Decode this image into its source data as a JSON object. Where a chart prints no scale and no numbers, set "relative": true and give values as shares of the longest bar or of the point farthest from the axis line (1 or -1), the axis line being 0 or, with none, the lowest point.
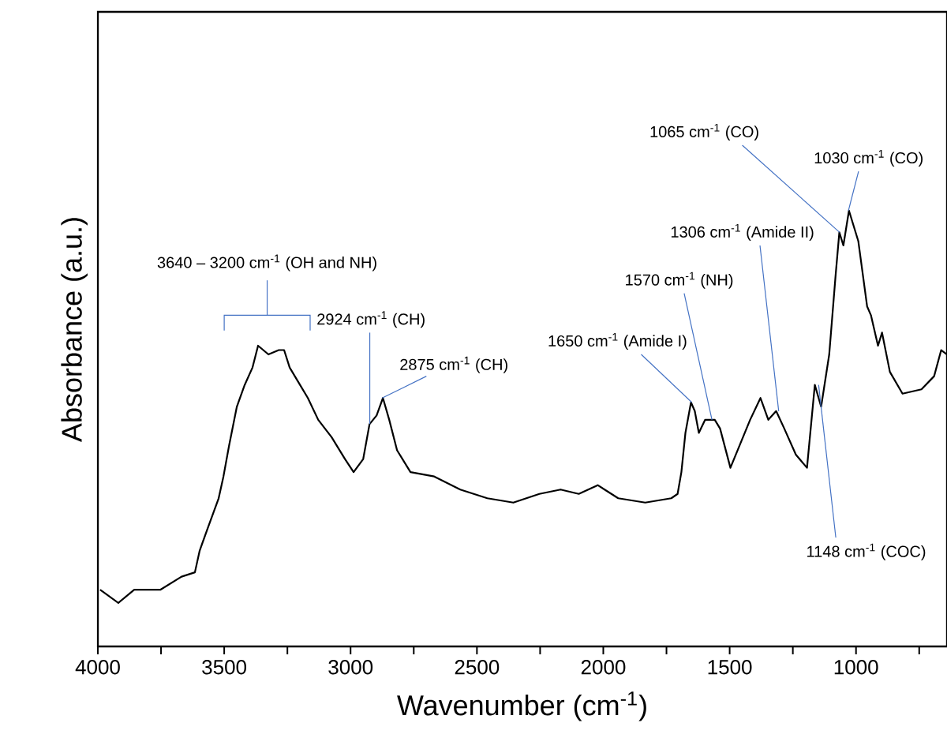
{
  "chart_data": {
    "type": "line",
    "relative": true,
    "xlabel": "Wavenumber (cm$^{-1}$)",
    "ylabel": "Absorbance (a.u.)",
    "xlim": [
      4000,
      640
    ],
    "xticks": [
      4000,
      {
        "value": 3750,
        "label": null
      },
      3500,
      {
        "value": 3250,
        "label": null
      },
      3000,
      {
        "value": 2750,
        "label": null
      },
      2500,
      {
        "value": 2250,
        "label": null
      },
      2000,
      {
        "value": 1750,
        "label": null
      },
      1500,
      {
        "value": 1250,
        "label": null
      },
      1000,
      {
        "value": 750,
        "label": null
      }
    ],
    "x": [
      3991,
      3919,
      3856,
      3753,
      3669,
      3616,
      3597,
      3566,
      3522,
      3503,
      3481,
      3450,
      3419,
      3388,
      3366,
      3325,
      3284,
      3263,
      3241,
      3200,
      3169,
      3128,
      3075,
      3022,
      2988,
      2950,
      2925,
      2897,
      2872,
      2847,
      2816,
      2763,
      2669,
      2566,
      2459,
      2356,
      2253,
      2169,
      2097,
      2022,
      1941,
      1834,
      1731,
      1706,
      1691,
      1675,
      1653,
      1638,
      1622,
      1597,
      1559,
      1538,
      1497,
      1419,
      1378,
      1347,
      1316,
      1284,
      1238,
      1194,
      1163,
      1138,
      1106,
      1081,
      1066,
      1050,
      1028,
      991,
      956,
      941,
      913,
      897,
      866,
      816,
      741,
      691,
      663,
      640
    ],
    "series": [
      {
        "color": "#000000",
        "values": [
          0.13,
          0.1,
          0.13,
          0.13,
          0.16,
          0.17,
          0.22,
          0.27,
          0.34,
          0.39,
          0.46,
          0.55,
          0.6,
          0.64,
          0.69,
          0.67,
          0.68,
          0.68,
          0.64,
          0.6,
          0.57,
          0.52,
          0.48,
          0.43,
          0.4,
          0.43,
          0.51,
          0.53,
          0.57,
          0.52,
          0.45,
          0.4,
          0.39,
          0.36,
          0.34,
          0.33,
          0.35,
          0.36,
          0.35,
          0.37,
          0.34,
          0.33,
          0.34,
          0.35,
          0.4,
          0.49,
          0.56,
          0.54,
          0.49,
          0.52,
          0.52,
          0.5,
          0.41,
          0.52,
          0.57,
          0.52,
          0.54,
          0.5,
          0.44,
          0.41,
          0.6,
          0.55,
          0.67,
          0.85,
          0.95,
          0.92,
          1.0,
          0.93,
          0.78,
          0.76,
          0.69,
          0.72,
          0.63,
          0.58,
          0.59,
          0.62,
          0.68,
          0.67
        ]
      }
    ],
    "annotations": [
      "3640 – 3200 cm$^{-1}$ (OH and NH)",
      {
        "text": "2924 cm$^{-1}$ (CH)",
        "x": 2924,
        "y": 0.51
      },
      {
        "text": "2875 cm$^{-1}$ (CH)",
        "x": 2875,
        "y": 0.57
      },
      {
        "text": "1650 cm$^{-1}$ (Amide I)",
        "x": 1650,
        "y": 0.56
      },
      {
        "text": "1570 cm$^{-1}$ (NH)",
        "x": 1570,
        "y": 0.52
      },
      {
        "text": "1306 cm$^{-1}$ (Amide II)",
        "x": 1306,
        "y": 0.54
      },
      {
        "text": "1065 cm$^{-1}$ (CO)",
        "x": 1065,
        "y": 0.95
      },
      {
        "text": "1030 cm$^{-1}$ (CO)",
        "x": 1030,
        "y": 1.0
      },
      {
        "text": "1148 cm$^{-1}$ (COC)",
        "x": 1148,
        "y": 0.6
      }
    ]
  }
}
